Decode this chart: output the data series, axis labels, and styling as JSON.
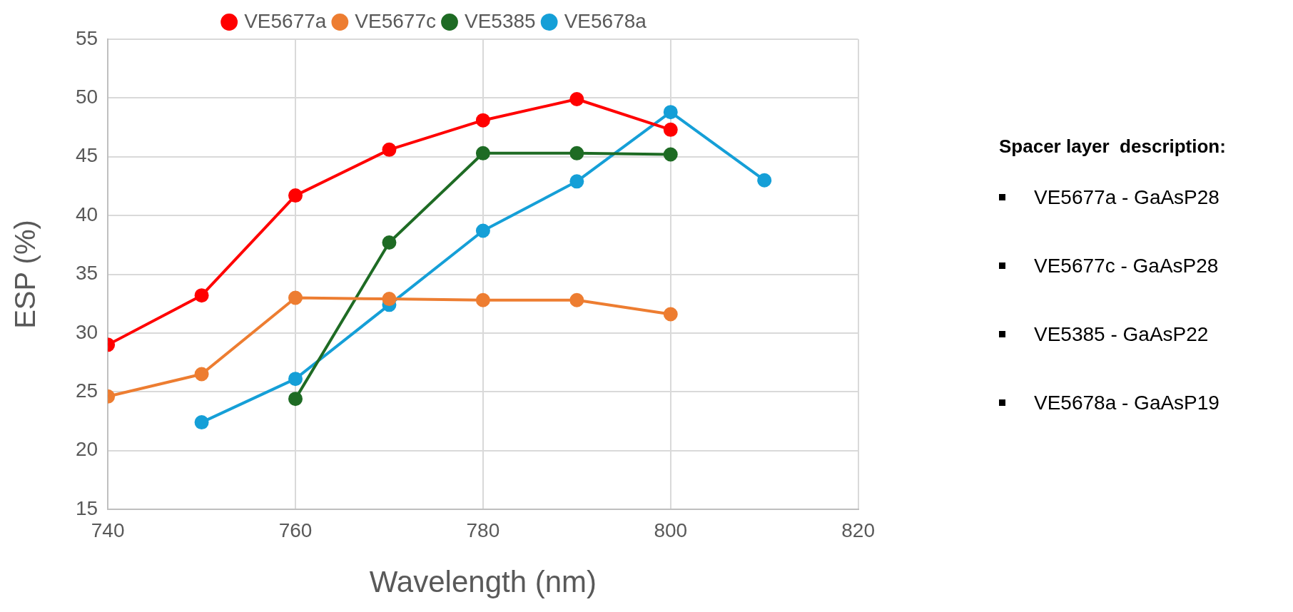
{
  "chart_data": {
    "type": "line",
    "xlabel": "Wavelength (nm)",
    "ylabel": "ESP (%)",
    "xlim": [
      740,
      820
    ],
    "xticks": [
      740,
      760,
      780,
      800,
      820
    ],
    "ylim": [
      15,
      55
    ],
    "yticks": [
      15,
      20,
      25,
      30,
      35,
      40,
      45,
      50,
      55
    ],
    "grid": true,
    "legend": "top",
    "marker": "circle",
    "line_style": "solid",
    "series": [
      {
        "name": "VE5677a",
        "color": "#ff0000",
        "x": [
          740,
          750,
          760,
          770,
          780,
          790,
          800
        ],
        "values": [
          29.0,
          33.2,
          41.7,
          45.6,
          48.1,
          49.9,
          47.3
        ]
      },
      {
        "name": "VE5677c",
        "color": "#ed7d31",
        "x": [
          740,
          750,
          760,
          770,
          780,
          790,
          800
        ],
        "values": [
          24.6,
          26.5,
          33.0,
          32.9,
          32.8,
          32.8,
          31.6
        ]
      },
      {
        "name": "VE5385",
        "color": "#1e6b24",
        "x": [
          760,
          770,
          780,
          790,
          800
        ],
        "values": [
          24.4,
          37.7,
          45.3,
          45.3,
          45.2
        ]
      },
      {
        "name": "VE5678a",
        "color": "#159fd7",
        "x": [
          750,
          760,
          770,
          780,
          790,
          800,
          810
        ],
        "values": [
          22.4,
          26.1,
          32.4,
          38.7,
          42.9,
          48.8,
          43.0
        ]
      }
    ],
    "annotations": [
      "Spacer layer  description:",
      "VE5677a - GaAsP28",
      "VE5677c - GaAsP28",
      "VE5385 - GaAsP22",
      "VE5678a - GaAsP19"
    ]
  }
}
